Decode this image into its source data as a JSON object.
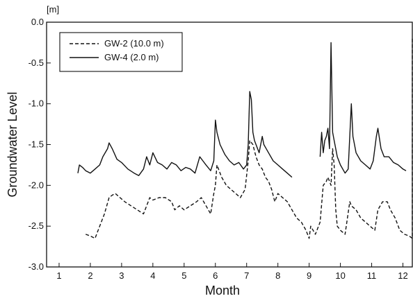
{
  "chart_data": {
    "type": "line",
    "xlabel": "Month",
    "ylabel": "Groundwater Level",
    "y_unit": "[m]",
    "xlim": [
      0.6,
      12.3
    ],
    "ylim": [
      -3.0,
      0.0
    ],
    "x_ticks": [
      1,
      2,
      3,
      4,
      5,
      6,
      7,
      8,
      9,
      10,
      11,
      12
    ],
    "x_tick_labels": [
      "1",
      "2",
      "3",
      "4",
      "5",
      "6",
      "7",
      "8",
      "9",
      "10",
      "11",
      "12"
    ],
    "y_ticks": [
      0.0,
      -0.5,
      -1.0,
      -1.5,
      -2.0,
      -2.5,
      -3.0
    ],
    "y_tick_labels": [
      "0.0",
      "-0.5",
      "-1.0",
      "-1.5",
      "-2.0",
      "-2.5",
      "-3.0"
    ],
    "grid": false,
    "legend_position": "top-left",
    "series": [
      {
        "name": "GW-2 (10.0 m)",
        "style": "dashed",
        "color": "#111111",
        "segments": [
          {
            "x": [
              1.85,
              2.0,
              2.15,
              2.3,
              2.45,
              2.6,
              2.7,
              2.8,
              2.95,
              3.1,
              3.3,
              3.5,
              3.7,
              3.8,
              3.9,
              4.0,
              4.2,
              4.4,
              4.6,
              4.7,
              4.85,
              5.0,
              5.2,
              5.4,
              5.55,
              5.7,
              5.85,
              5.95,
              6.0,
              6.05,
              6.2,
              6.35,
              6.5,
              6.65,
              6.8,
              6.95,
              7.05,
              7.1,
              7.2,
              7.3,
              7.4,
              7.5,
              7.6,
              7.7,
              7.8,
              7.9,
              8.0,
              8.15,
              8.3,
              8.45,
              8.6,
              8.75,
              8.9,
              9.0,
              9.05,
              9.2,
              9.35,
              9.45,
              9.55,
              9.6,
              9.7,
              9.75,
              9.8,
              9.85,
              9.9,
              10.0,
              10.15,
              10.3,
              10.35,
              10.5,
              10.65,
              10.8,
              10.95,
              11.1,
              11.2,
              11.35,
              11.5,
              11.6,
              11.75,
              11.9,
              12.05,
              12.2,
              12.3,
              12.3
            ],
            "y": [
              -2.6,
              -2.62,
              -2.65,
              -2.5,
              -2.35,
              -2.15,
              -2.12,
              -2.1,
              -2.15,
              -2.2,
              -2.25,
              -2.3,
              -2.35,
              -2.25,
              -2.15,
              -2.18,
              -2.15,
              -2.15,
              -2.2,
              -2.3,
              -2.25,
              -2.3,
              -2.25,
              -2.2,
              -2.15,
              -2.25,
              -2.35,
              -2.1,
              -2.0,
              -1.75,
              -1.9,
              -2.0,
              -2.05,
              -2.1,
              -2.15,
              -2.05,
              -1.7,
              -1.45,
              -1.5,
              -1.65,
              -1.75,
              -1.8,
              -1.9,
              -1.95,
              -2.05,
              -2.2,
              -2.1,
              -2.15,
              -2.2,
              -2.3,
              -2.4,
              -2.45,
              -2.55,
              -2.65,
              -2.5,
              -2.6,
              -2.45,
              -2.0,
              -1.95,
              -1.9,
              -2.0,
              -1.55,
              -1.75,
              -2.3,
              -2.5,
              -2.55,
              -2.6,
              -2.2,
              -2.25,
              -2.3,
              -2.4,
              -2.45,
              -2.5,
              -2.55,
              -2.3,
              -2.2,
              -2.2,
              -2.3,
              -2.4,
              -2.55,
              -2.6,
              -2.62,
              -2.65,
              -0.2
            ]
          }
        ]
      },
      {
        "name": "GW-4 (2.0 m)",
        "style": "solid",
        "color": "#111111",
        "segments": [
          {
            "x": [
              1.6,
              1.65,
              1.75,
              1.85,
              2.0,
              2.15,
              2.3,
              2.4,
              2.55,
              2.6,
              2.7,
              2.85,
              3.0,
              3.2,
              3.4,
              3.55,
              3.7,
              3.8,
              3.9,
              4.0,
              4.15,
              4.3,
              4.45,
              4.6,
              4.75,
              4.9,
              5.05,
              5.2,
              5.35,
              5.5,
              5.6,
              5.7,
              5.85,
              5.95,
              6.0,
              6.05,
              6.15,
              6.3,
              6.45,
              6.6,
              6.75,
              6.9,
              7.0,
              7.05,
              7.1,
              7.15,
              7.2,
              7.25,
              7.3,
              7.4,
              7.5,
              7.55,
              7.7,
              7.85,
              8.0,
              8.15,
              8.3,
              8.45
            ],
            "y": [
              -1.85,
              -1.75,
              -1.78,
              -1.82,
              -1.85,
              -1.8,
              -1.75,
              -1.65,
              -1.55,
              -1.48,
              -1.55,
              -1.68,
              -1.72,
              -1.8,
              -1.85,
              -1.88,
              -1.8,
              -1.65,
              -1.75,
              -1.6,
              -1.72,
              -1.75,
              -1.8,
              -1.72,
              -1.75,
              -1.82,
              -1.78,
              -1.8,
              -1.85,
              -1.65,
              -1.7,
              -1.75,
              -1.82,
              -1.7,
              -1.2,
              -1.35,
              -1.5,
              -1.62,
              -1.7,
              -1.75,
              -1.72,
              -1.8,
              -1.75,
              -1.5,
              -0.85,
              -0.95,
              -1.35,
              -1.45,
              -1.5,
              -1.6,
              -1.4,
              -1.5,
              -1.6,
              -1.7,
              -1.75,
              -1.8,
              -1.85,
              -1.9
            ]
          },
          {
            "x": [
              9.35,
              9.4,
              9.45,
              9.5,
              9.55,
              9.6,
              9.65,
              9.7,
              9.75,
              9.8,
              9.9,
              10.0,
              10.15,
              10.25,
              10.35,
              10.4,
              10.5,
              10.65,
              10.8,
              10.95,
              11.05,
              11.15,
              11.2,
              11.3,
              11.4,
              11.55,
              11.7,
              11.85,
              12.0,
              12.1
            ],
            "y": [
              -1.65,
              -1.35,
              -1.6,
              -1.45,
              -1.4,
              -1.3,
              -1.55,
              -0.25,
              -1.35,
              -1.45,
              -1.65,
              -1.75,
              -1.85,
              -1.8,
              -1.0,
              -1.4,
              -1.6,
              -1.7,
              -1.75,
              -1.8,
              -1.7,
              -1.4,
              -1.3,
              -1.55,
              -1.65,
              -1.65,
              -1.72,
              -1.75,
              -1.8,
              -1.82
            ]
          }
        ]
      }
    ]
  }
}
